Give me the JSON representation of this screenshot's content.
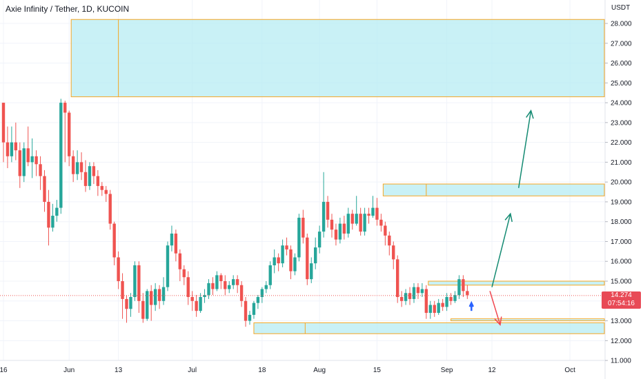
{
  "chart_data": {
    "type": "candlestick",
    "title": "Axie Infinity / Tether, 1D, KUCOIN",
    "unit": "USDT",
    "ylim": [
      11.0,
      29.0
    ],
    "y_ticks": [
      "11.000",
      "12.000",
      "13.000",
      "14.000",
      "15.000",
      "16.000",
      "17.000",
      "18.000",
      "19.000",
      "20.000",
      "21.000",
      "22.000",
      "23.000",
      "24.000",
      "25.000",
      "26.000",
      "27.000",
      "28.000"
    ],
    "x_ticks": [
      {
        "label": "16",
        "day": 0
      },
      {
        "label": "Jun",
        "day": 16
      },
      {
        "label": "13",
        "day": 28
      },
      {
        "label": "Jul",
        "day": 46
      },
      {
        "label": "18",
        "day": 63
      },
      {
        "label": "Aug",
        "day": 77
      },
      {
        "label": "15",
        "day": 91
      },
      {
        "label": "Sep",
        "day": 108
      },
      {
        "label": "12",
        "day": 119
      },
      {
        "label": "Oct",
        "day": 138
      }
    ],
    "last_price": "14.274",
    "countdown": "07:54:16",
    "current_price_value": 14.274,
    "candles": [
      [
        24.0,
        22.0,
        24.0,
        21.0
      ],
      [
        22.0,
        21.3,
        22.8,
        20.7
      ],
      [
        21.3,
        22.0,
        22.8,
        21.0
      ],
      [
        22.0,
        21.6,
        23.0,
        21.1
      ],
      [
        21.6,
        20.3,
        22.0,
        19.7
      ],
      [
        20.3,
        21.7,
        22.0,
        20.0
      ],
      [
        21.7,
        21.0,
        22.8,
        20.8
      ],
      [
        21.0,
        21.3,
        22.2,
        20.2
      ],
      [
        21.3,
        20.9,
        21.6,
        20.3
      ],
      [
        20.9,
        20.3,
        21.3,
        19.6
      ],
      [
        20.3,
        19.0,
        20.6,
        18.5
      ],
      [
        19.0,
        17.7,
        19.6,
        16.8
      ],
      [
        17.7,
        18.3,
        18.9,
        17.5
      ],
      [
        18.3,
        18.7,
        19.1,
        18.0
      ],
      [
        18.7,
        24.0,
        24.2,
        18.4
      ],
      [
        24.0,
        23.5,
        24.1,
        21.0
      ],
      [
        23.5,
        21.3,
        23.6,
        20.8
      ],
      [
        21.3,
        20.4,
        21.6,
        20.0
      ],
      [
        20.4,
        21.0,
        21.6,
        20.1
      ],
      [
        21.0,
        20.5,
        21.5,
        20.1
      ],
      [
        20.5,
        19.8,
        21.1,
        19.5
      ],
      [
        19.8,
        20.8,
        21.0,
        19.6
      ],
      [
        20.8,
        20.3,
        21.0,
        19.9
      ],
      [
        20.3,
        19.8,
        20.6,
        19.3
      ],
      [
        19.8,
        19.6,
        20.0,
        19.3
      ],
      [
        19.6,
        19.4,
        19.8,
        19.0
      ],
      [
        19.4,
        17.9,
        19.6,
        17.6
      ],
      [
        17.9,
        16.2,
        18.0,
        15.8
      ],
      [
        16.2,
        15.0,
        16.5,
        14.6
      ],
      [
        15.0,
        14.1,
        15.4,
        13.1
      ],
      [
        14.1,
        13.6,
        14.3,
        12.9
      ],
      [
        13.6,
        14.2,
        14.4,
        13.2
      ],
      [
        14.2,
        15.8,
        16.0,
        14.0
      ],
      [
        15.8,
        14.0,
        16.0,
        13.4
      ],
      [
        14.0,
        13.1,
        14.4,
        12.9
      ],
      [
        13.1,
        14.5,
        14.6,
        13.0
      ],
      [
        14.5,
        13.8,
        14.8,
        13.0
      ],
      [
        13.8,
        14.6,
        14.9,
        13.5
      ],
      [
        14.6,
        14.0,
        14.8,
        13.6
      ],
      [
        14.0,
        14.7,
        15.2,
        13.8
      ],
      [
        14.7,
        16.8,
        17.0,
        14.5
      ],
      [
        16.8,
        17.4,
        17.8,
        16.5
      ],
      [
        17.4,
        16.4,
        17.6,
        16.0
      ],
      [
        16.4,
        15.6,
        16.6,
        15.0
      ],
      [
        15.6,
        15.2,
        15.8,
        14.8
      ],
      [
        15.2,
        14.2,
        15.5,
        13.8
      ],
      [
        14.2,
        14.0,
        14.5,
        13.5
      ],
      [
        14.0,
        13.5,
        14.3,
        13.2
      ],
      [
        13.5,
        14.2,
        14.4,
        13.4
      ],
      [
        14.2,
        14.3,
        14.6,
        13.9
      ],
      [
        14.3,
        14.9,
        15.1,
        14.1
      ],
      [
        14.9,
        14.6,
        15.2,
        14.3
      ],
      [
        14.6,
        15.3,
        15.5,
        14.5
      ],
      [
        15.3,
        15.0,
        15.4,
        14.6
      ],
      [
        15.0,
        14.6,
        15.3,
        14.3
      ],
      [
        14.6,
        14.8,
        15.0,
        14.4
      ],
      [
        14.8,
        15.1,
        15.3,
        14.6
      ],
      [
        15.1,
        14.8,
        15.3,
        14.4
      ],
      [
        14.8,
        14.0,
        15.0,
        13.7
      ],
      [
        14.0,
        13.0,
        14.2,
        12.7
      ],
      [
        13.0,
        13.3,
        13.5,
        12.8
      ],
      [
        13.3,
        13.9,
        14.0,
        13.1
      ],
      [
        13.9,
        14.2,
        14.3,
        13.6
      ],
      [
        14.2,
        14.6,
        14.7,
        13.9
      ],
      [
        14.6,
        14.8,
        15.0,
        14.4
      ],
      [
        14.8,
        15.8,
        16.0,
        14.6
      ],
      [
        15.8,
        16.2,
        16.6,
        15.4
      ],
      [
        16.2,
        15.9,
        16.4,
        15.5
      ],
      [
        15.9,
        16.8,
        17.1,
        15.7
      ],
      [
        16.8,
        16.6,
        17.2,
        16.3
      ],
      [
        16.6,
        15.5,
        16.8,
        15.1
      ],
      [
        15.5,
        16.2,
        16.4,
        15.3
      ],
      [
        16.2,
        18.2,
        18.4,
        16.0
      ],
      [
        18.2,
        17.2,
        18.6,
        16.9
      ],
      [
        17.2,
        15.1,
        17.4,
        14.8
      ],
      [
        15.1,
        15.9,
        16.2,
        14.9
      ],
      [
        15.9,
        16.7,
        17.2,
        15.6
      ],
      [
        16.7,
        17.5,
        17.8,
        16.4
      ],
      [
        17.5,
        19.0,
        20.5,
        17.2
      ],
      [
        19.0,
        18.1,
        19.3,
        17.7
      ],
      [
        18.1,
        17.6,
        18.4,
        17.2
      ],
      [
        17.6,
        17.1,
        17.9,
        16.8
      ],
      [
        17.1,
        17.9,
        18.2,
        16.9
      ],
      [
        17.9,
        17.4,
        18.3,
        17.1
      ],
      [
        17.4,
        18.4,
        18.7,
        17.2
      ],
      [
        18.4,
        17.9,
        18.6,
        17.6
      ],
      [
        17.9,
        18.4,
        19.3,
        17.8
      ],
      [
        18.4,
        17.5,
        18.7,
        17.3
      ],
      [
        17.5,
        18.4,
        18.7,
        17.3
      ],
      [
        18.4,
        18.3,
        18.7,
        17.9
      ],
      [
        18.3,
        18.7,
        19.3,
        18.2
      ],
      [
        18.7,
        18.1,
        19.2,
        17.8
      ],
      [
        18.1,
        17.8,
        18.4,
        17.5
      ],
      [
        17.8,
        17.3,
        18.0,
        16.8
      ],
      [
        17.3,
        16.8,
        17.5,
        16.3
      ],
      [
        16.8,
        16.1,
        17.0,
        15.6
      ],
      [
        16.1,
        14.2,
        16.3,
        13.9
      ],
      [
        14.2,
        14.0,
        14.5,
        13.7
      ],
      [
        14.0,
        14.4,
        14.6,
        13.8
      ],
      [
        14.4,
        14.1,
        14.7,
        13.8
      ],
      [
        14.1,
        14.7,
        14.9,
        13.9
      ],
      [
        14.7,
        14.4,
        14.9,
        14.1
      ],
      [
        14.4,
        14.6,
        14.9,
        14.2
      ],
      [
        14.6,
        13.4,
        14.8,
        13.1
      ],
      [
        13.4,
        13.8,
        14.0,
        13.1
      ],
      [
        13.8,
        13.4,
        14.0,
        13.2
      ],
      [
        13.4,
        13.9,
        14.1,
        13.3
      ],
      [
        13.9,
        13.7,
        14.1,
        13.5
      ],
      [
        13.7,
        14.2,
        14.4,
        13.5
      ],
      [
        14.2,
        14.0,
        14.4,
        13.8
      ],
      [
        14.0,
        14.3,
        14.5,
        13.9
      ],
      [
        14.3,
        15.1,
        15.3,
        14.1
      ],
      [
        15.1,
        14.5,
        15.3,
        14.2
      ],
      [
        14.5,
        14.3,
        14.8,
        14.1
      ]
    ],
    "zones": [
      {
        "from_day": 16.5,
        "to_day": 150,
        "top": 28.2,
        "bottom": 24.3,
        "split_day": 28
      },
      {
        "from_day": 92.5,
        "to_day": 150,
        "top": 19.9,
        "bottom": 19.3,
        "split_day": 103
      },
      {
        "from_day": 103.5,
        "to_day": 150,
        "top": 15.0,
        "bottom": 14.8,
        "split_day": null
      },
      {
        "from_day": 61,
        "to_day": 150,
        "top": 12.9,
        "bottom": 12.35,
        "split_day": 73.5
      },
      {
        "from_day": 109,
        "to_day": 150,
        "top": 13.1,
        "bottom": 13.0,
        "split_day": null
      }
    ],
    "arrows": [
      {
        "color": "green",
        "from": [
          125.5,
          19.7
        ],
        "to": [
          128.5,
          23.6
        ]
      },
      {
        "color": "green",
        "from": [
          119,
          14.7
        ],
        "to": [
          123.5,
          18.4
        ]
      },
      {
        "color": "red",
        "from": [
          118.5,
          14.5
        ],
        "to": [
          121,
          12.8
        ]
      },
      {
        "color": "blue",
        "from": [
          114,
          13.5
        ],
        "to": [
          114,
          13.9
        ]
      }
    ],
    "colors": {
      "up": "#26a69a",
      "down": "#ef5350",
      "zone_fill": "#b2ebf2",
      "zone_border": "#f5a623",
      "green_arrow": "#138a72",
      "red_arrow": "#f0464f",
      "blue_arrow": "#2962ff",
      "grid": "#f0f3fa"
    }
  }
}
